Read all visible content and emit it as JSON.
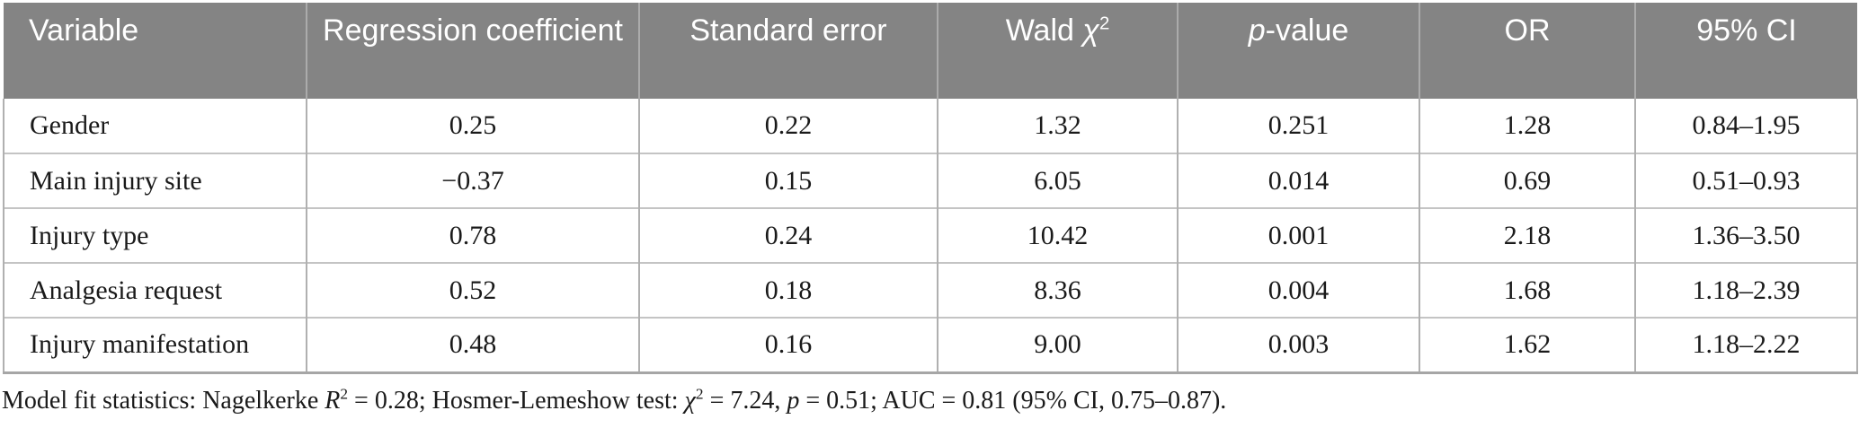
{
  "table": {
    "headers": [
      {
        "id": "variable",
        "align": "left",
        "segments": [
          {
            "t": "Variable"
          }
        ]
      },
      {
        "id": "regression-coefficient",
        "segments": [
          {
            "t": "Regression coefficient"
          }
        ]
      },
      {
        "id": "standard-error",
        "segments": [
          {
            "t": "Standard error"
          }
        ]
      },
      {
        "id": "wald-chi-squared",
        "segments": [
          {
            "t": "Wald "
          },
          {
            "t": "χ",
            "i": true
          },
          {
            "t": "2",
            "sup": true
          }
        ]
      },
      {
        "id": "p-value",
        "segments": [
          {
            "t": "p",
            "i": true
          },
          {
            "t": "-value"
          }
        ]
      },
      {
        "id": "odds-ratio",
        "segments": [
          {
            "t": "OR"
          }
        ]
      },
      {
        "id": "ci-95",
        "segments": [
          {
            "t": "95% CI"
          }
        ]
      }
    ],
    "rows": [
      {
        "variable": "Gender",
        "regression_coefficient": "0.25",
        "standard_error": "0.22",
        "wald_chi_squared": "1.32",
        "p_value": "0.251",
        "odds_ratio": "1.28",
        "ci_95": "0.84–1.95"
      },
      {
        "variable": "Main injury site",
        "regression_coefficient": "−0.37",
        "standard_error": "0.15",
        "wald_chi_squared": "6.05",
        "p_value": "0.014",
        "odds_ratio": "0.69",
        "ci_95": "0.51–0.93"
      },
      {
        "variable": "Injury type",
        "regression_coefficient": "0.78",
        "standard_error": "0.24",
        "wald_chi_squared": "10.42",
        "p_value": "0.001",
        "odds_ratio": "2.18",
        "ci_95": "1.36–3.50"
      },
      {
        "variable": "Analgesia request",
        "regression_coefficient": "0.52",
        "standard_error": "0.18",
        "wald_chi_squared": "8.36",
        "p_value": "0.004",
        "odds_ratio": "1.68",
        "ci_95": "1.18–2.39"
      },
      {
        "variable": "Injury manifestation",
        "regression_coefficient": "0.48",
        "standard_error": "0.16",
        "wald_chi_squared": "9.00",
        "p_value": "0.003",
        "odds_ratio": "1.62",
        "ci_95": "1.18–2.22"
      }
    ]
  },
  "footnote": {
    "segments": [
      {
        "t": "Model fit statistics: Nagelkerke "
      },
      {
        "t": "R",
        "i": true
      },
      {
        "t": "2",
        "sup": true
      },
      {
        "t": " = 0.28; Hosmer-Lemeshow test: "
      },
      {
        "t": "χ",
        "i": true
      },
      {
        "t": "2",
        "sup": true
      },
      {
        "t": " = 7.24, "
      },
      {
        "t": "p",
        "i": true
      },
      {
        "t": " = 0.51; AUC = 0.81 (95% CI, 0.75–0.87)."
      }
    ]
  },
  "colors": {
    "header_background": "#848484",
    "header_text": "#ffffff",
    "header_divider": "#ababab",
    "body_text": "#1a1a1a",
    "row_divider": "#c4c4c4",
    "column_divider": "#b0b0b0",
    "table_bottom_border": "#a6a6a6"
  }
}
